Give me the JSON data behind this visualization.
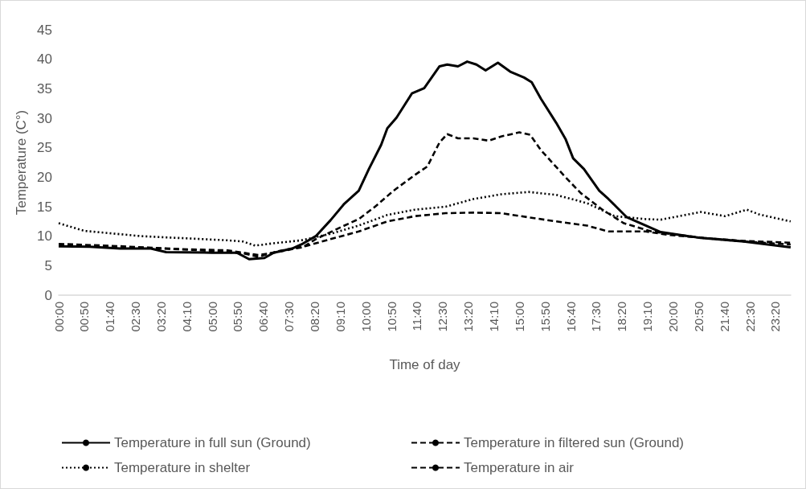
{
  "chart_data": {
    "type": "line",
    "xlabel": "Time of day",
    "ylabel": "Temperature (C°)",
    "xlim": [
      0,
      23.8333
    ],
    "xticks": [
      {
        "value": 0,
        "label": "00:00"
      },
      {
        "value": 0.8333,
        "label": "00:50"
      },
      {
        "value": 1.6667,
        "label": "01:40"
      },
      {
        "value": 2.5,
        "label": "02:30"
      },
      {
        "value": 3.3333,
        "label": "03:20"
      },
      {
        "value": 4.1667,
        "label": "04:10"
      },
      {
        "value": 5,
        "label": "05:00"
      },
      {
        "value": 5.8333,
        "label": "05:50"
      },
      {
        "value": 6.6667,
        "label": "06:40"
      },
      {
        "value": 7.5,
        "label": "07:30"
      },
      {
        "value": 8.3333,
        "label": "08:20"
      },
      {
        "value": 9.1667,
        "label": "09:10"
      },
      {
        "value": 10,
        "label": "10:00"
      },
      {
        "value": 10.8333,
        "label": "10:50"
      },
      {
        "value": 11.6667,
        "label": "11:40"
      },
      {
        "value": 12.5,
        "label": "12:30"
      },
      {
        "value": 13.3333,
        "label": "13:20"
      },
      {
        "value": 14.1667,
        "label": "14:10"
      },
      {
        "value": 15,
        "label": "15:00"
      },
      {
        "value": 15.8333,
        "label": "15:50"
      },
      {
        "value": 16.6667,
        "label": "16:40"
      },
      {
        "value": 17.5,
        "label": "17:30"
      },
      {
        "value": 18.3333,
        "label": "18:20"
      },
      {
        "value": 19.1667,
        "label": "19:10"
      },
      {
        "value": 20,
        "label": "20:00"
      },
      {
        "value": 20.8333,
        "label": "20:50"
      },
      {
        "value": 21.6667,
        "label": "21:40"
      },
      {
        "value": 22.5,
        "label": "22:30"
      },
      {
        "value": 23.3333,
        "label": "23:20"
      }
    ],
    "ylim": [
      0,
      45
    ],
    "yticks": [
      0,
      5,
      10,
      15,
      20,
      25,
      30,
      35,
      40,
      45
    ],
    "grid": false,
    "legend": "bottom",
    "marker": "none",
    "series": [
      {
        "name": "Temperature in full sun (Ground)",
        "color": "#000000",
        "line_style": "solid",
        "x": [
          0,
          1,
          2,
          3,
          3.5,
          5,
          5.8,
          6.2,
          6.7,
          7.0,
          7.6,
          7.9,
          8.37,
          8.85,
          9.3,
          9.77,
          10.1,
          10.5,
          10.7,
          11.0,
          11.5,
          11.9,
          12.4,
          12.65,
          13.0,
          13.3,
          13.6,
          13.9,
          14.3,
          14.7,
          15.15,
          15.4,
          15.7,
          16.2,
          16.5,
          16.75,
          17.1,
          17.6,
          17.9,
          18.5,
          19.6,
          20.9,
          22.3,
          23.83
        ],
        "values": [
          8.3,
          8.2,
          7.9,
          7.9,
          7.3,
          7.2,
          7.2,
          6.1,
          6.3,
          7.2,
          7.9,
          8.6,
          10.0,
          12.7,
          15.5,
          17.7,
          21.4,
          25.5,
          28.3,
          30.1,
          34.2,
          35.1,
          38.8,
          39.1,
          38.8,
          39.6,
          39.1,
          38.1,
          39.4,
          37.9,
          36.9,
          36.1,
          33.3,
          29.2,
          26.5,
          23.2,
          21.4,
          17.7,
          16.3,
          13.2,
          10.7,
          9.7,
          9.1,
          8.1
        ]
      },
      {
        "name": "Temperature in filtered sun (Ground)",
        "color": "#000000",
        "line_style": "dashed",
        "x": [
          0,
          1.5,
          3,
          5,
          6.0,
          6.5,
          7.1,
          8.0,
          8.37,
          9.3,
          9.77,
          10.3,
          10.9,
          11.6,
          12.0,
          12.4,
          12.65,
          13.0,
          13.5,
          14.0,
          14.4,
          15.0,
          15.35,
          15.7,
          16.5,
          17.0,
          17.7,
          18.4,
          19.3,
          20.2,
          21,
          22.3,
          23.83
        ],
        "values": [
          8.6,
          8.3,
          8.0,
          7.5,
          7.1,
          6.5,
          7.4,
          8.3,
          9.5,
          11.8,
          12.9,
          15,
          17.7,
          20.4,
          21.8,
          25.9,
          27.3,
          26.6,
          26.6,
          26.2,
          26.9,
          27.6,
          27.2,
          24.6,
          20.0,
          17.3,
          14.5,
          12.2,
          10.8,
          10.2,
          9.7,
          9.1,
          8.6
        ]
      },
      {
        "name": "Temperature in shelter",
        "color": "#000000",
        "line_style": "dotted",
        "x": [
          0,
          0.84,
          2.7,
          5.5,
          6.0,
          6.4,
          7.0,
          7.9,
          8.85,
          9.77,
          10.7,
          11.6,
          12.6,
          13.5,
          14.4,
          15.3,
          16.2,
          17.2,
          18.1,
          19.1,
          19.6,
          20.9,
          21.7,
          22.4,
          22.8,
          23.83
        ],
        "values": [
          12.2,
          10.9,
          10.0,
          9.3,
          9.1,
          8.4,
          8.8,
          9.3,
          10.4,
          11.8,
          13.6,
          14.5,
          15.0,
          16.3,
          17.1,
          17.5,
          17.0,
          15.6,
          13.4,
          12.9,
          12.8,
          14.1,
          13.4,
          14.5,
          13.7,
          12.5
        ]
      },
      {
        "name": "Temperature in air",
        "color": "#000000",
        "line_style": "dashed",
        "x": [
          0,
          2,
          4,
          5.5,
          6.5,
          7.0,
          7.9,
          8.85,
          9.77,
          10.7,
          11.6,
          12.6,
          13.5,
          14.4,
          15.3,
          16.2,
          17.2,
          17.9,
          19.1,
          19.9,
          21,
          22.3,
          23.83
        ],
        "values": [
          8.7,
          8.3,
          7.8,
          7.6,
          6.8,
          7.2,
          8.1,
          9.5,
          10.8,
          12.5,
          13.4,
          13.9,
          14.0,
          13.9,
          13.2,
          12.5,
          11.8,
          10.8,
          10.8,
          10.2,
          9.7,
          9.2,
          8.9
        ]
      }
    ]
  }
}
